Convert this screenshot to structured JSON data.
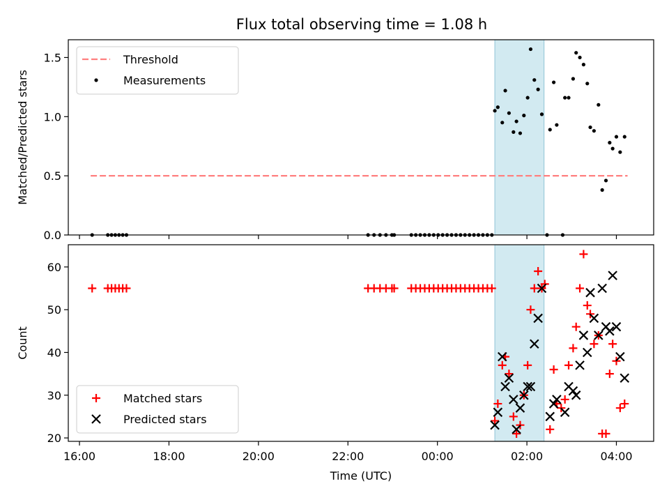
{
  "title": "Flux total observing time = 1.08 h",
  "chart_data": [
    {
      "type": "scatter",
      "panel": "top",
      "ylabel": "Matched/Predicted stars",
      "ylim": [
        0,
        1.65
      ],
      "xlim": [
        "15:45",
        "04:50"
      ],
      "yticks": [
        0.0,
        0.5,
        1.0,
        1.5
      ],
      "ytick_labels": [
        "0.0",
        "0.5",
        "1.0",
        "1.5"
      ],
      "legend_position": "top-left",
      "grid": false,
      "highlight_span": [
        "01:17",
        "02:23"
      ],
      "series": [
        {
          "name": "Threshold",
          "style": "dashed-line",
          "color": "#ff7f7f",
          "points": [
            [
              "16:15",
              0.5
            ],
            [
              "04:15",
              0.5
            ]
          ]
        },
        {
          "name": "Measurements",
          "style": "dot",
          "color": "#000000",
          "points": [
            [
              "16:17",
              0
            ],
            [
              "16:38",
              0
            ],
            [
              "16:43",
              0
            ],
            [
              "16:48",
              0
            ],
            [
              "16:53",
              0
            ],
            [
              "16:58",
              0
            ],
            [
              "17:03",
              0
            ],
            [
              "22:27",
              0
            ],
            [
              "22:35",
              0
            ],
            [
              "22:43",
              0
            ],
            [
              "22:51",
              0
            ],
            [
              "22:59",
              0
            ],
            [
              "23:02",
              0
            ],
            [
              "23:25",
              0
            ],
            [
              "23:31",
              0
            ],
            [
              "23:37",
              0
            ],
            [
              "23:43",
              0
            ],
            [
              "23:49",
              0
            ],
            [
              "23:55",
              0
            ],
            [
              "00:01",
              0
            ],
            [
              "00:07",
              0
            ],
            [
              "00:13",
              0
            ],
            [
              "00:19",
              0
            ],
            [
              "00:25",
              0
            ],
            [
              "00:31",
              0
            ],
            [
              "00:37",
              0
            ],
            [
              "00:43",
              0
            ],
            [
              "00:49",
              0
            ],
            [
              "00:55",
              0
            ],
            [
              "01:01",
              0
            ],
            [
              "01:07",
              0
            ],
            [
              "01:13",
              0
            ],
            [
              "02:27",
              0
            ],
            [
              "02:48",
              0
            ],
            [
              "01:17",
              1.05
            ],
            [
              "01:21",
              1.08
            ],
            [
              "01:27",
              0.95
            ],
            [
              "01:31",
              1.22
            ],
            [
              "01:36",
              1.03
            ],
            [
              "01:42",
              0.87
            ],
            [
              "01:46",
              0.96
            ],
            [
              "01:51",
              0.86
            ],
            [
              "01:56",
              1.01
            ],
            [
              "02:01",
              1.16
            ],
            [
              "02:05",
              1.57
            ],
            [
              "02:10",
              1.31
            ],
            [
              "02:15",
              1.23
            ],
            [
              "02:20",
              1.02
            ],
            [
              "02:31",
              0.89
            ],
            [
              "02:36",
              1.29
            ],
            [
              "02:40",
              0.93
            ],
            [
              "02:51",
              1.16
            ],
            [
              "02:56",
              1.16
            ],
            [
              "03:02",
              1.32
            ],
            [
              "03:06",
              1.54
            ],
            [
              "03:11",
              1.5
            ],
            [
              "03:16",
              1.44
            ],
            [
              "03:21",
              1.28
            ],
            [
              "03:25",
              0.91
            ],
            [
              "03:30",
              0.88
            ],
            [
              "03:36",
              1.1
            ],
            [
              "03:41",
              0.38
            ],
            [
              "03:46",
              0.46
            ],
            [
              "03:51",
              0.78
            ],
            [
              "03:55",
              0.73
            ],
            [
              "04:00",
              0.83
            ],
            [
              "04:05",
              0.7
            ],
            [
              "04:11",
              0.83
            ]
          ]
        }
      ]
    },
    {
      "type": "scatter",
      "panel": "bottom",
      "xlabel": "Time (UTC)",
      "ylabel": "Count",
      "ylim": [
        19.2,
        65.2
      ],
      "xlim": [
        "15:45",
        "04:50"
      ],
      "yticks": [
        20,
        30,
        40,
        50,
        60
      ],
      "ytick_labels": [
        "20",
        "30",
        "40",
        "50",
        "60"
      ],
      "xticks": [
        "16:00",
        "18:00",
        "20:00",
        "22:00",
        "00:00",
        "02:00",
        "04:00"
      ],
      "xtick_labels": [
        "16:00",
        "18:00",
        "20:00",
        "22:00",
        "00:00",
        "02:00",
        "04:00"
      ],
      "legend_position": "bottom-left",
      "grid": false,
      "highlight_span": [
        "01:17",
        "02:23"
      ],
      "series": [
        {
          "name": "Matched stars",
          "style": "plus",
          "color": "#ff0000",
          "points": [
            [
              "16:17",
              55
            ],
            [
              "16:38",
              55
            ],
            [
              "16:43",
              55
            ],
            [
              "16:48",
              55
            ],
            [
              "16:53",
              55
            ],
            [
              "16:58",
              55
            ],
            [
              "17:03",
              55
            ],
            [
              "22:27",
              55
            ],
            [
              "22:35",
              55
            ],
            [
              "22:43",
              55
            ],
            [
              "22:51",
              55
            ],
            [
              "22:59",
              55
            ],
            [
              "23:02",
              55
            ],
            [
              "23:25",
              55
            ],
            [
              "23:31",
              55
            ],
            [
              "23:37",
              55
            ],
            [
              "23:43",
              55
            ],
            [
              "23:49",
              55
            ],
            [
              "23:55",
              55
            ],
            [
              "00:01",
              55
            ],
            [
              "00:07",
              55
            ],
            [
              "00:13",
              55
            ],
            [
              "00:19",
              55
            ],
            [
              "00:25",
              55
            ],
            [
              "00:31",
              55
            ],
            [
              "00:37",
              55
            ],
            [
              "00:43",
              55
            ],
            [
              "00:49",
              55
            ],
            [
              "00:55",
              55
            ],
            [
              "01:01",
              55
            ],
            [
              "01:07",
              55
            ],
            [
              "01:13",
              55
            ],
            [
              "01:17",
              24
            ],
            [
              "01:21",
              28
            ],
            [
              "01:27",
              37
            ],
            [
              "01:31",
              39
            ],
            [
              "01:36",
              35
            ],
            [
              "01:42",
              25
            ],
            [
              "01:46",
              21
            ],
            [
              "01:51",
              23
            ],
            [
              "01:56",
              30
            ],
            [
              "02:01",
              37
            ],
            [
              "02:05",
              50
            ],
            [
              "02:10",
              55
            ],
            [
              "02:15",
              59
            ],
            [
              "02:20",
              55
            ],
            [
              "02:24",
              56
            ],
            [
              "02:31",
              22
            ],
            [
              "02:36",
              36
            ],
            [
              "02:40",
              28
            ],
            [
              "02:46",
              27
            ],
            [
              "02:51",
              29
            ],
            [
              "02:56",
              37
            ],
            [
              "03:02",
              41
            ],
            [
              "03:06",
              46
            ],
            [
              "03:11",
              55
            ],
            [
              "03:16",
              63
            ],
            [
              "03:21",
              51
            ],
            [
              "03:25",
              49
            ],
            [
              "03:30",
              42
            ],
            [
              "03:36",
              44
            ],
            [
              "03:41",
              21
            ],
            [
              "03:46",
              21
            ],
            [
              "03:51",
              35
            ],
            [
              "03:55",
              42
            ],
            [
              "04:00",
              38
            ],
            [
              "04:05",
              27
            ],
            [
              "04:11",
              28
            ]
          ]
        },
        {
          "name": "Predicted stars",
          "style": "x",
          "color": "#000000",
          "points": [
            [
              "01:17",
              23
            ],
            [
              "01:21",
              26
            ],
            [
              "01:27",
              39
            ],
            [
              "01:31",
              32
            ],
            [
              "01:36",
              34
            ],
            [
              "01:42",
              29
            ],
            [
              "01:46",
              22
            ],
            [
              "01:51",
              27
            ],
            [
              "01:56",
              30
            ],
            [
              "02:01",
              32
            ],
            [
              "02:05",
              32
            ],
            [
              "02:10",
              42
            ],
            [
              "02:15",
              48
            ],
            [
              "02:20",
              55
            ],
            [
              "02:31",
              25
            ],
            [
              "02:36",
              28
            ],
            [
              "02:40",
              29
            ],
            [
              "02:51",
              26
            ],
            [
              "02:56",
              32
            ],
            [
              "03:02",
              31
            ],
            [
              "03:06",
              30
            ],
            [
              "03:11",
              37
            ],
            [
              "03:16",
              44
            ],
            [
              "03:21",
              40
            ],
            [
              "03:25",
              54
            ],
            [
              "03:30",
              48
            ],
            [
              "03:36",
              44
            ],
            [
              "03:41",
              55
            ],
            [
              "03:46",
              46
            ],
            [
              "03:51",
              45
            ],
            [
              "03:55",
              58
            ],
            [
              "04:00",
              46
            ],
            [
              "04:05",
              39
            ],
            [
              "04:11",
              34
            ]
          ]
        }
      ]
    }
  ]
}
